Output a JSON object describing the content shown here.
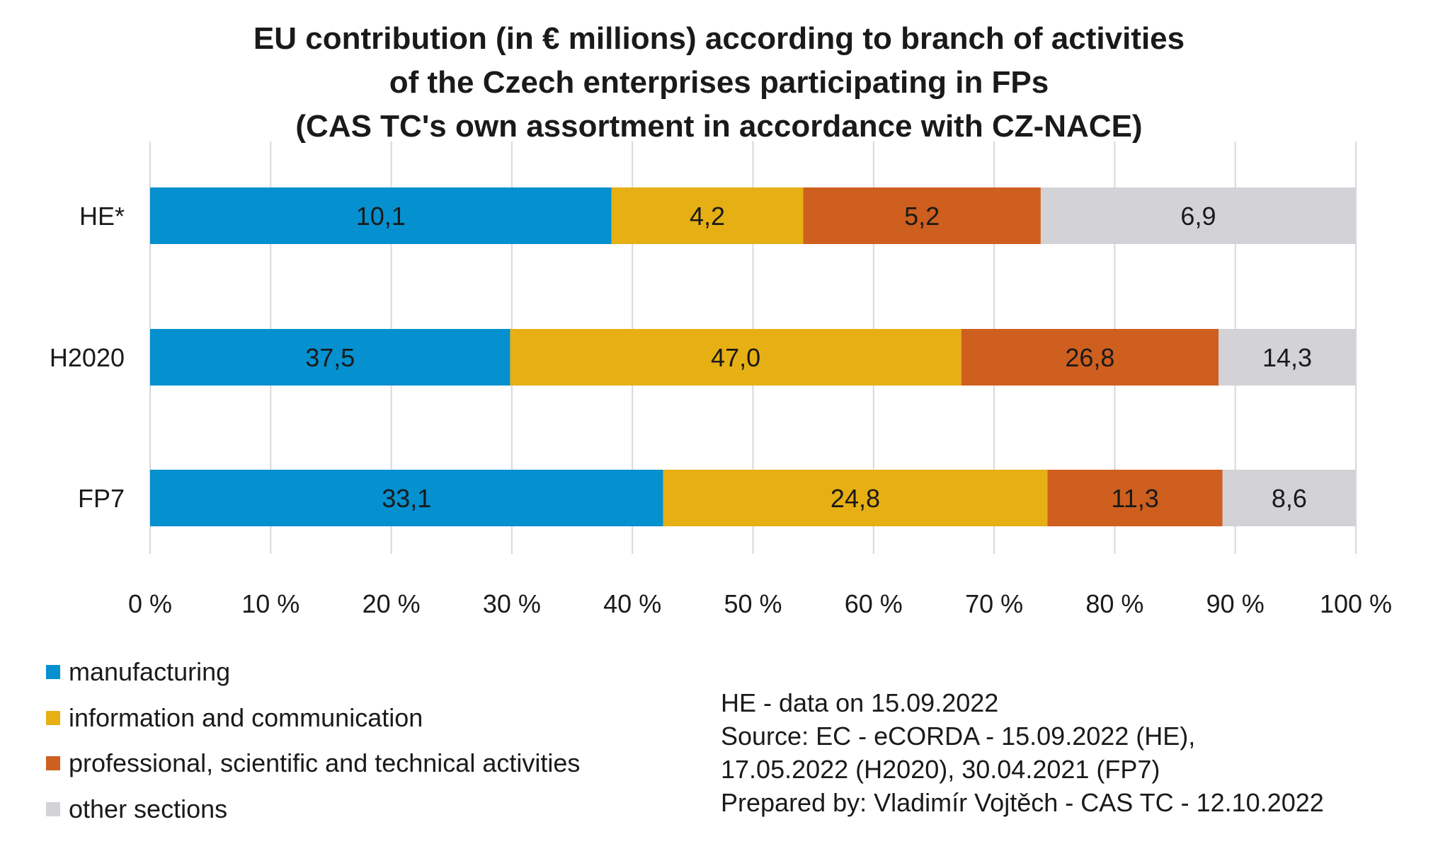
{
  "chart_data": {
    "type": "bar",
    "orientation": "horizontal",
    "stacked": "percent",
    "title": [
      "EU contribution (in € millions) according to branch of activities",
      "of the Czech enterprises participating in FPs",
      "(CAS TC's own assortment in accordance with CZ-NACE)"
    ],
    "categories": [
      "HE*",
      "H2020",
      "FP7"
    ],
    "series": [
      {
        "name": "manufacturing",
        "color": "#0590CF",
        "values": [
          10.1,
          37.5,
          33.1
        ],
        "labels": [
          "10,1",
          "37,5",
          "33,1"
        ]
      },
      {
        "name": "information and communication",
        "color": "#E6AF14",
        "values": [
          4.2,
          47.0,
          24.8
        ],
        "labels": [
          "4,2",
          "47,0",
          "24,8"
        ]
      },
      {
        "name": "professional, scientific and technical activities",
        "color": "#CE5F1F",
        "values": [
          5.2,
          26.8,
          11.3
        ],
        "labels": [
          "5,2",
          "26,8",
          "11,3"
        ]
      },
      {
        "name": "other sections",
        "color": "#D2D2D7",
        "values": [
          6.9,
          14.3,
          8.6
        ],
        "labels": [
          "6,9",
          "14,3",
          "8,6"
        ]
      }
    ],
    "xlim": [
      0,
      100
    ],
    "xticks": [
      "0 %",
      "10 %",
      "20 %",
      "30 %",
      "40 %",
      "50 %",
      "60 %",
      "70 %",
      "80 %",
      "90 %",
      "100 %"
    ],
    "grid": "vertical",
    "legend_placement": "bottom-left"
  },
  "notes": [
    "HE - data on 15.09.2022",
    "Source: EC - eCORDA - 15.09.2022 (HE),",
    "17.05.2022 (H2020), 30.04.2021 (FP7)",
    "Prepared by: Vladimír Vojtěch - CAS TC - 12.10.2022"
  ]
}
